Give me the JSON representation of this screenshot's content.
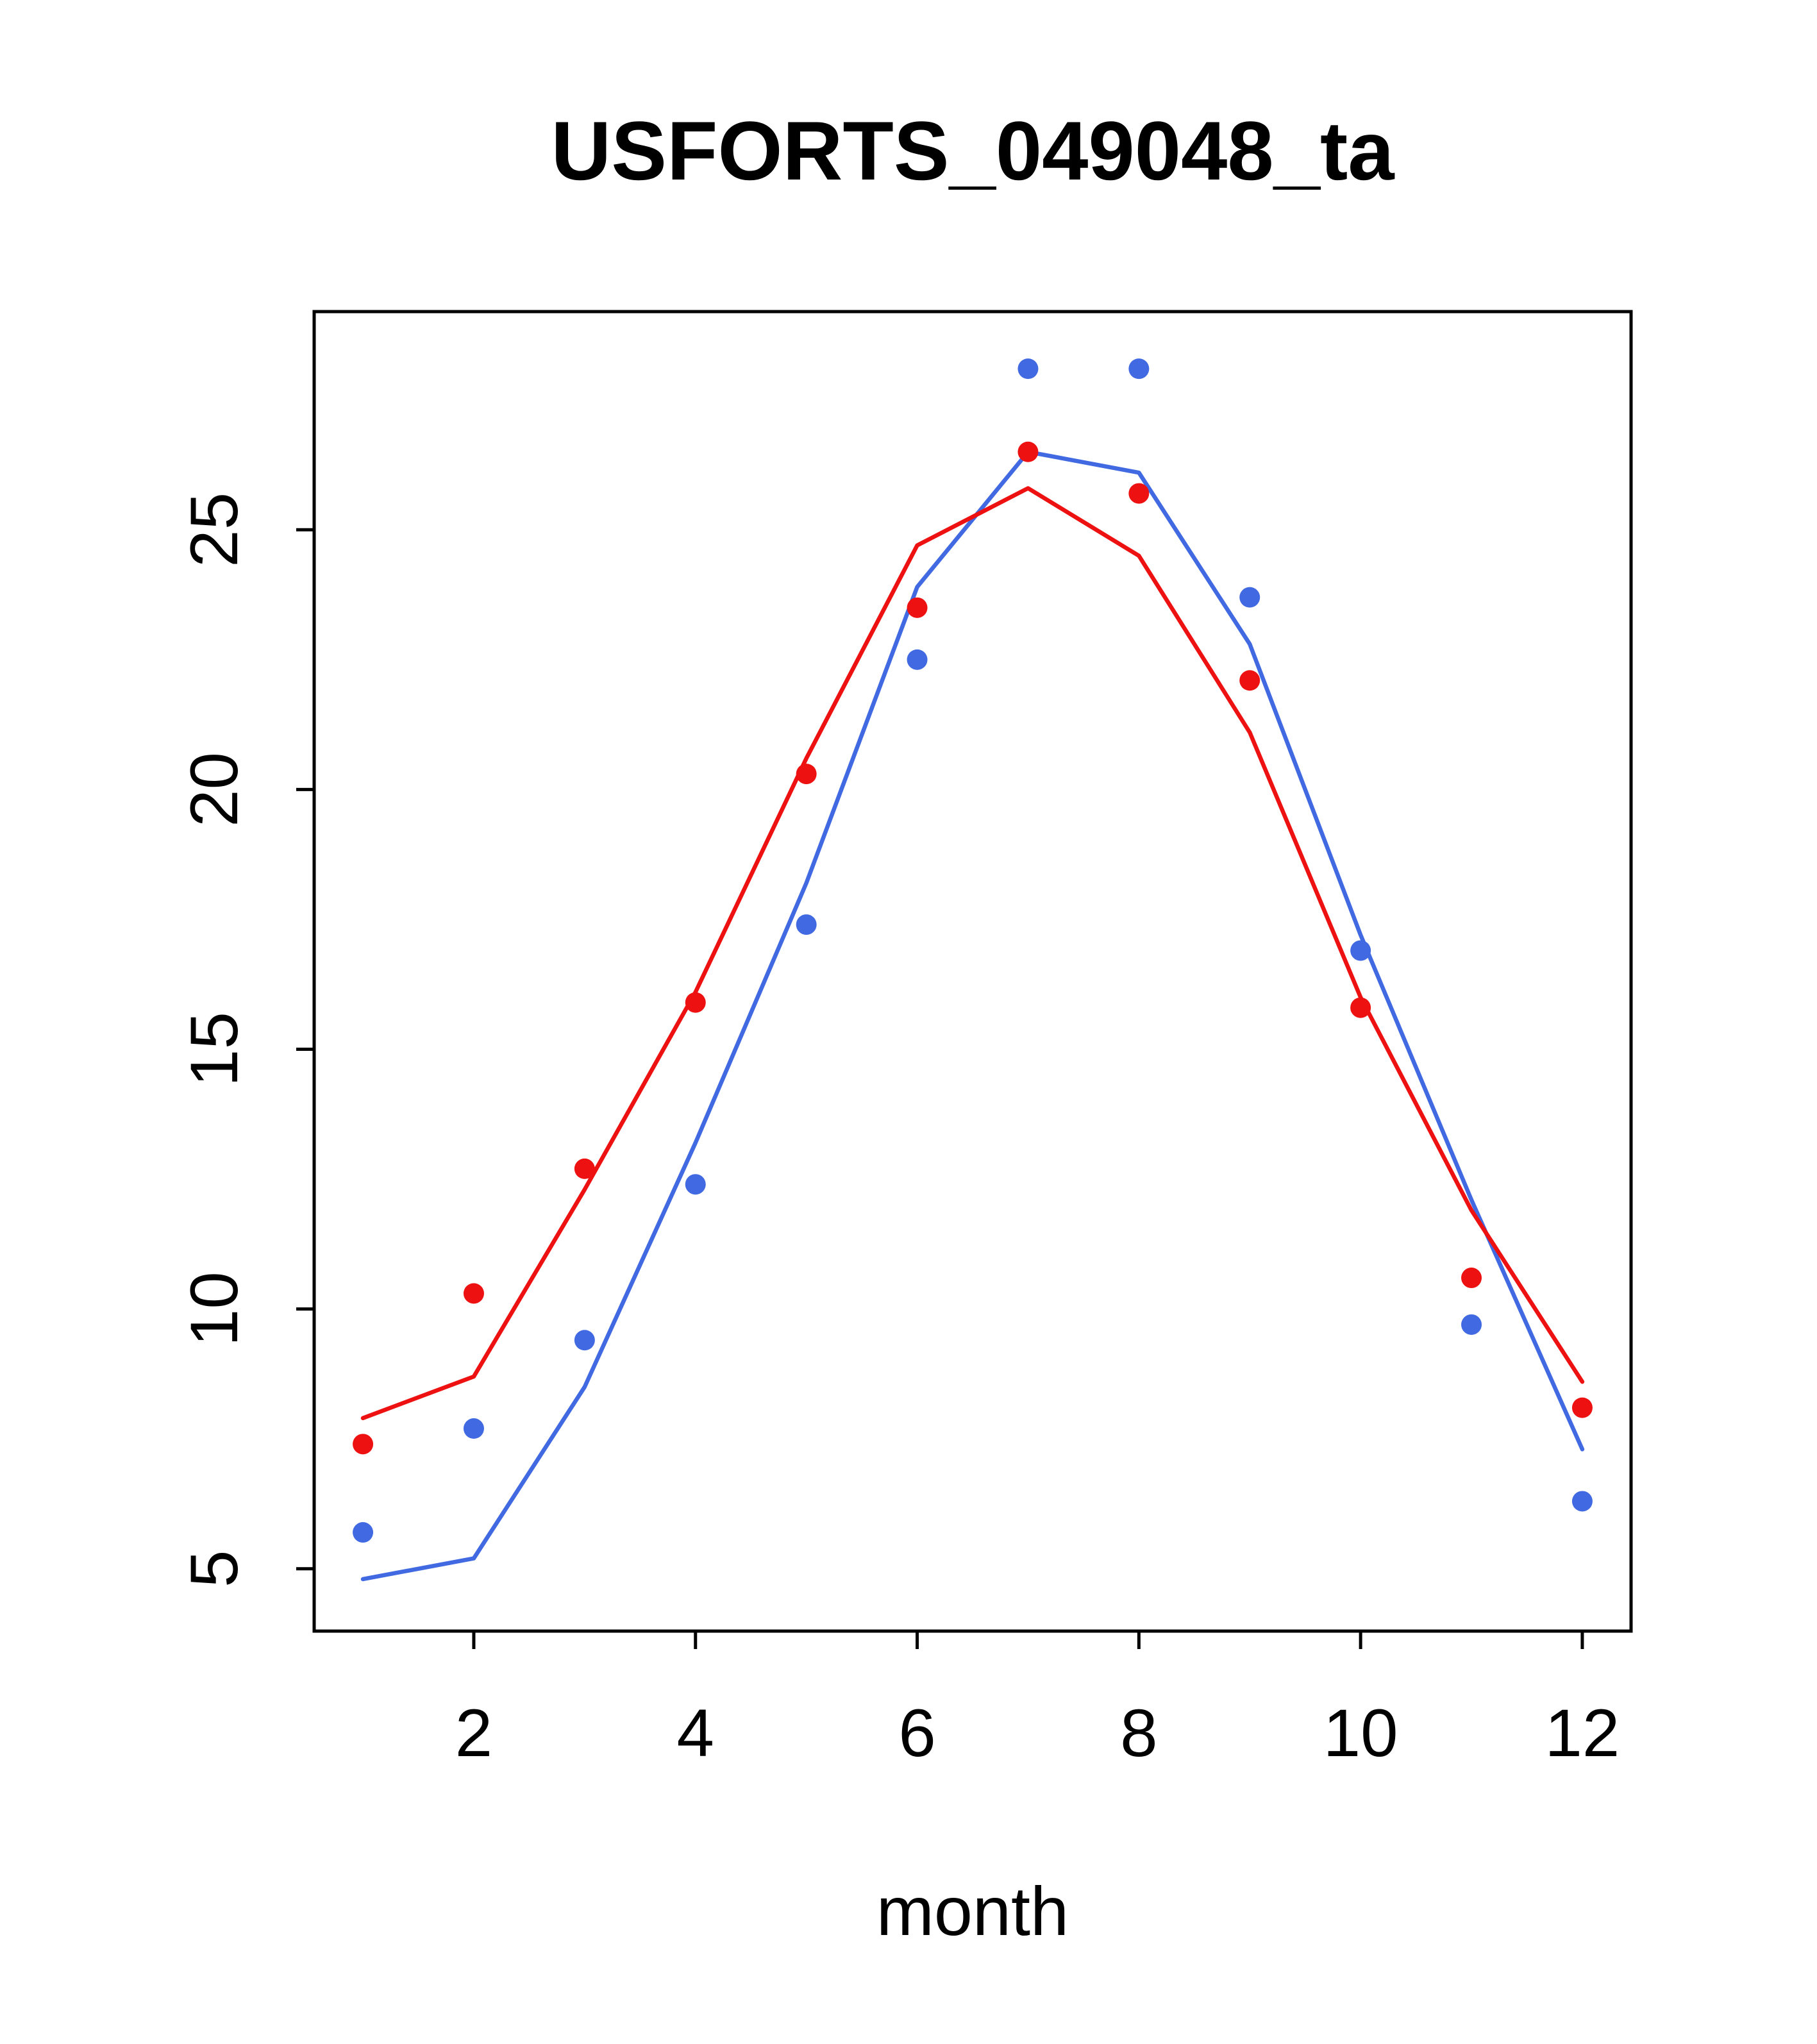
{
  "title": "USFORTS_049048_ta",
  "chart_data": {
    "type": "line",
    "title": "USFORTS_049048_ta",
    "xlabel": "month",
    "ylabel": "",
    "x": [
      1,
      2,
      3,
      4,
      5,
      6,
      7,
      8,
      9,
      10,
      11,
      12
    ],
    "x_ticks": [
      2,
      4,
      6,
      8,
      10,
      12
    ],
    "y_ticks": [
      5,
      10,
      15,
      20,
      25
    ],
    "xlim": [
      0.56,
      12.44
    ],
    "ylim": [
      3.8,
      29.2
    ],
    "grid": false,
    "legend": "none",
    "colors": {
      "axis": "#000000",
      "background": "#FFFFFF",
      "red_series": "#EE1111",
      "blue_series": "#4169E1"
    },
    "series": [
      {
        "name": "blue-line",
        "style": "line",
        "color": "#4169E1",
        "values": [
          4.8,
          5.2,
          8.5,
          13.2,
          18.2,
          23.9,
          26.5,
          26.1,
          22.8,
          17.2,
          12.1,
          7.3
        ]
      },
      {
        "name": "red-line",
        "style": "line",
        "color": "#EE1111",
        "values": [
          7.9,
          8.7,
          12.3,
          16.1,
          20.6,
          24.7,
          25.8,
          24.5,
          21.1,
          16.0,
          11.9,
          8.6
        ]
      },
      {
        "name": "blue-points",
        "style": "points",
        "color": "#4169E1",
        "values": [
          5.7,
          7.7,
          9.4,
          12.4,
          17.4,
          22.5,
          28.1,
          28.1,
          23.7,
          16.9,
          9.7,
          6.3
        ]
      },
      {
        "name": "red-points",
        "style": "points",
        "color": "#EE1111",
        "values": [
          7.4,
          10.3,
          12.7,
          15.9,
          20.3,
          23.5,
          26.5,
          25.7,
          22.1,
          15.8,
          10.6,
          8.1
        ]
      }
    ]
  }
}
